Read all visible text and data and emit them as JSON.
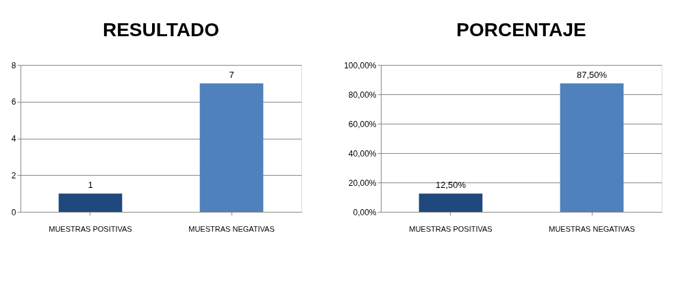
{
  "chart_data": [
    {
      "type": "bar",
      "title": "RESULTADO",
      "categories": [
        "MUESTRAS POSITIVAS",
        "MUESTRAS NEGATIVAS"
      ],
      "values": [
        1,
        7
      ],
      "colors": [
        "#1f497d",
        "#4f81bd"
      ],
      "ylim": [
        0,
        8
      ],
      "yticks": [
        0,
        2,
        4,
        6,
        8
      ],
      "grid": "y",
      "data_labels": true
    },
    {
      "type": "bar",
      "title": "PORCENTAJE",
      "categories": [
        "MUESTRAS POSITIVAS",
        "MUESTRAS NEGATIVAS"
      ],
      "values": [
        12.5,
        87.5
      ],
      "colors": [
        "#1f497d",
        "#4f81bd"
      ],
      "ylim": [
        0,
        100
      ],
      "yticks": [
        {
          "value": 0,
          "label": "0,00%"
        },
        {
          "value": 20,
          "label": "20,00%"
        },
        {
          "value": 40,
          "label": "40,00%"
        },
        {
          "value": 60,
          "label": "60,00%"
        },
        {
          "value": 80,
          "label": "80,00%"
        },
        {
          "value": 100,
          "label": "100,00%"
        }
      ],
      "grid": "y",
      "value_labels": [
        "12,50%",
        "87,50%"
      ]
    }
  ]
}
